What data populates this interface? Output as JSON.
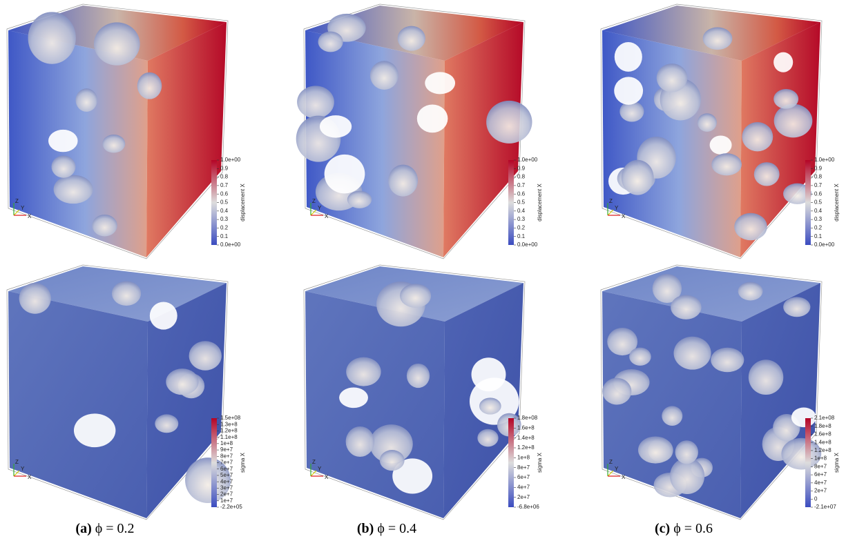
{
  "panels": [
    {
      "caption": {
        "label": "(a)",
        "text": "ϕ = 0.2"
      },
      "top": {
        "colorbar": {
          "title": "displacement X",
          "ticks": [
            "1.0e+00",
            "0.9",
            "0.8",
            "0.7",
            "0.6",
            "0.5",
            "0.4",
            "0.3",
            "0.2",
            "0.1",
            "0.0e+00"
          ]
        },
        "axes": [
          "Z",
          "Y",
          "X"
        ]
      },
      "bottom": {
        "colorbar": {
          "title": "sigma X",
          "ticks": [
            "1.5e+08",
            "1.3e+8",
            "1.2e+8",
            "1.1e+8",
            "1e+8",
            "9e+7",
            "8e+7",
            "7e+7",
            "6e+7",
            "5e+7",
            "4e+7",
            "3e+7",
            "2e+7",
            "1e+7",
            "-2.2e+05"
          ]
        },
        "axes": [
          "Z",
          "Y",
          "X"
        ]
      }
    },
    {
      "caption": {
        "label": "(b)",
        "text": "ϕ = 0.4"
      },
      "top": {
        "colorbar": {
          "title": "displacement X",
          "ticks": [
            "1.0e+00",
            "0.9",
            "0.8",
            "0.7",
            "0.6",
            "0.5",
            "0.4",
            "0.3",
            "0.2",
            "0.1",
            "0.0e+00"
          ]
        },
        "axes": [
          "Z",
          "Y",
          "X"
        ]
      },
      "bottom": {
        "colorbar": {
          "title": "sigma X",
          "ticks": [
            "1.8e+08",
            "1.6e+8",
            "1.4e+8",
            "1.2e+8",
            "1e+8",
            "8e+7",
            "6e+7",
            "4e+7",
            "2e+7",
            "-6.8e+06"
          ]
        },
        "axes": [
          "Z",
          "Y",
          "X"
        ]
      }
    },
    {
      "caption": {
        "label": "(c)",
        "text": "ϕ = 0.6"
      },
      "top": {
        "colorbar": {
          "title": "displacement X",
          "ticks": [
            "1.0e+00",
            "0.9",
            "0.8",
            "0.7",
            "0.6",
            "0.5",
            "0.4",
            "0.3",
            "0.2",
            "0.1",
            "0.0e+00"
          ]
        },
        "axes": [
          "Z",
          "Y",
          "X"
        ]
      },
      "bottom": {
        "colorbar": {
          "title": "sigma X",
          "ticks": [
            "2.1e+08",
            "1.8e+8",
            "1.6e+8",
            "1.4e+8",
            "1.2e+8",
            "1e+8",
            "8e+7",
            "6e+7",
            "4e+7",
            "2e+7",
            "0",
            "-2.1e+07"
          ]
        },
        "axes": [
          "Z",
          "Y",
          "X"
        ]
      }
    }
  ]
}
